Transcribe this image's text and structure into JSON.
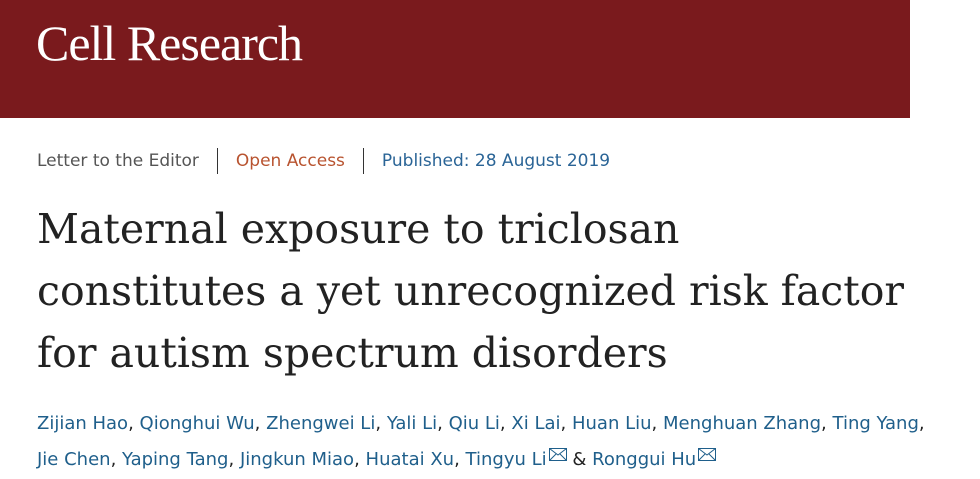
{
  "header": {
    "title": "Cell Research"
  },
  "meta": {
    "article_type": "Letter to the Editor",
    "access": "Open Access",
    "published": "Published: 28 August 2019"
  },
  "title_lines": [
    "Maternal exposure to triclosan",
    "constitutes a yet unrecognized risk factor",
    "for autism spectrum disorders"
  ],
  "authors": {
    "separator": ",",
    "conjunction": "&",
    "lines": [
      [
        {
          "name": "Zijian Hao"
        },
        {
          "name": "Qionghui Wu"
        },
        {
          "name": "Zhengwei Li"
        },
        {
          "name": "Yali Li"
        },
        {
          "name": "Qiu Li"
        },
        {
          "name": "Xi Lai"
        },
        {
          "name": "Huan Liu"
        },
        {
          "name": "Menghuan Zhang"
        },
        {
          "name": "Ting Yang"
        }
      ],
      [
        {
          "name": "Jie Chen"
        },
        {
          "name": "Yaping Tang"
        },
        {
          "name": "Jingkun Miao"
        },
        {
          "name": "Huatai Xu"
        },
        {
          "name": "Tingyu Li",
          "corresponding": true
        },
        {
          "name": "Ronggui Hu",
          "corresponding": true
        }
      ]
    ]
  }
}
